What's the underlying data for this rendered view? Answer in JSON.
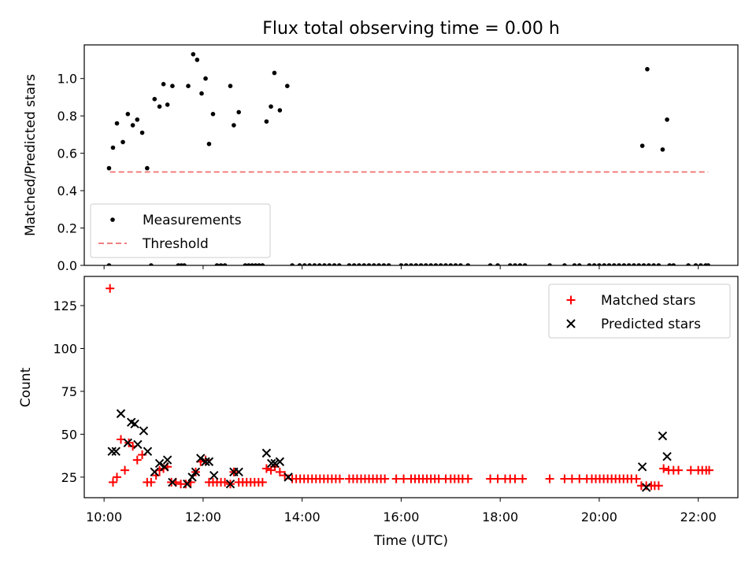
{
  "title": "Flux total observing time = 0.00 h",
  "xlabel": "Time (UTC)",
  "xticks": [
    {
      "t": 10,
      "label": "10:00"
    },
    {
      "t": 12,
      "label": "12:00"
    },
    {
      "t": 14,
      "label": "14:00"
    },
    {
      "t": 16,
      "label": "16:00"
    },
    {
      "t": 18,
      "label": "18:00"
    },
    {
      "t": 20,
      "label": "20:00"
    },
    {
      "t": 22,
      "label": "22:00"
    }
  ],
  "colors": {
    "measurements": "#000000",
    "threshold": "#f08080",
    "matched": "#ff0000",
    "predicted": "#000000"
  },
  "chart_data": [
    {
      "type": "scatter",
      "ylabel": "Matched/Predicted stars",
      "xlim": [
        9.6,
        22.8
      ],
      "ylim": [
        0,
        1.18
      ],
      "yticks": [
        0.0,
        0.2,
        0.4,
        0.6,
        0.8,
        1.0
      ],
      "ytick_labels": [
        "0.0",
        "0.2",
        "0.4",
        "0.6",
        "0.8",
        "1.0"
      ],
      "legend": "lower-left",
      "series": [
        {
          "name": "Measurements",
          "marker": "dot",
          "points": [
            [
              10.1,
              0.52
            ],
            [
              10.18,
              0.63
            ],
            [
              10.26,
              0.76
            ],
            [
              10.38,
              0.66
            ],
            [
              10.48,
              0.81
            ],
            [
              10.58,
              0.75
            ],
            [
              10.67,
              0.78
            ],
            [
              10.77,
              0.71
            ],
            [
              10.87,
              0.52
            ],
            [
              11.02,
              0.89
            ],
            [
              11.12,
              0.85
            ],
            [
              11.2,
              0.97
            ],
            [
              11.28,
              0.86
            ],
            [
              11.38,
              0.96
            ],
            [
              11.7,
              0.96
            ],
            [
              11.8,
              1.13
            ],
            [
              11.88,
              1.1
            ],
            [
              11.97,
              0.92
            ],
            [
              12.05,
              1.0
            ],
            [
              12.12,
              0.65
            ],
            [
              12.2,
              0.81
            ],
            [
              12.55,
              0.96
            ],
            [
              12.62,
              0.75
            ],
            [
              12.72,
              0.82
            ],
            [
              13.28,
              0.77
            ],
            [
              13.37,
              0.85
            ],
            [
              13.44,
              1.03
            ],
            [
              13.55,
              0.83
            ],
            [
              13.7,
              0.96
            ],
            [
              20.87,
              0.64
            ],
            [
              20.97,
              1.05
            ],
            [
              21.28,
              0.62
            ],
            [
              21.37,
              0.78
            ],
            [
              10.1,
              0
            ],
            [
              10.95,
              0
            ],
            [
              11.5,
              0
            ],
            [
              11.56,
              0
            ],
            [
              11.62,
              0
            ],
            [
              12.28,
              0
            ],
            [
              12.36,
              0
            ],
            [
              12.44,
              0
            ],
            [
              12.85,
              0
            ],
            [
              12.92,
              0
            ],
            [
              12.99,
              0
            ],
            [
              13.06,
              0
            ],
            [
              13.13,
              0
            ],
            [
              13.2,
              0
            ],
            [
              13.8,
              0
            ],
            [
              13.95,
              0
            ],
            [
              14.05,
              0
            ],
            [
              14.15,
              0
            ],
            [
              14.25,
              0
            ],
            [
              14.35,
              0
            ],
            [
              14.45,
              0
            ],
            [
              14.55,
              0
            ],
            [
              14.65,
              0
            ],
            [
              14.75,
              0
            ],
            [
              14.95,
              0
            ],
            [
              15.05,
              0
            ],
            [
              15.15,
              0
            ],
            [
              15.25,
              0
            ],
            [
              15.35,
              0
            ],
            [
              15.45,
              0
            ],
            [
              15.55,
              0
            ],
            [
              15.65,
              0
            ],
            [
              15.75,
              0
            ],
            [
              16.0,
              0
            ],
            [
              16.1,
              0
            ],
            [
              16.2,
              0
            ],
            [
              16.3,
              0
            ],
            [
              16.4,
              0
            ],
            [
              16.5,
              0
            ],
            [
              16.6,
              0
            ],
            [
              16.7,
              0
            ],
            [
              16.8,
              0
            ],
            [
              16.9,
              0
            ],
            [
              17.0,
              0
            ],
            [
              17.1,
              0
            ],
            [
              17.2,
              0
            ],
            [
              17.35,
              0
            ],
            [
              17.8,
              0
            ],
            [
              17.95,
              0
            ],
            [
              18.2,
              0
            ],
            [
              18.3,
              0
            ],
            [
              18.4,
              0
            ],
            [
              18.5,
              0
            ],
            [
              19.0,
              0
            ],
            [
              19.3,
              0
            ],
            [
              19.5,
              0
            ],
            [
              19.6,
              0
            ],
            [
              19.8,
              0
            ],
            [
              19.9,
              0
            ],
            [
              20.0,
              0
            ],
            [
              20.1,
              0
            ],
            [
              20.2,
              0
            ],
            [
              20.3,
              0
            ],
            [
              20.4,
              0
            ],
            [
              20.5,
              0
            ],
            [
              20.6,
              0
            ],
            [
              20.7,
              0
            ],
            [
              20.8,
              0
            ],
            [
              20.9,
              0
            ],
            [
              21.0,
              0
            ],
            [
              21.1,
              0
            ],
            [
              21.2,
              0
            ],
            [
              21.42,
              0
            ],
            [
              21.5,
              0
            ],
            [
              21.8,
              0
            ],
            [
              21.95,
              0
            ],
            [
              22.05,
              0
            ],
            [
              22.15,
              0
            ],
            [
              22.2,
              0
            ]
          ]
        },
        {
          "name": "Threshold",
          "line": "dashed",
          "x": [
            10.12,
            22.2
          ],
          "y": [
            0.5,
            0.5
          ]
        }
      ]
    },
    {
      "type": "scatter",
      "ylabel": "Count",
      "xlim": [
        9.6,
        22.8
      ],
      "ylim": [
        13,
        142
      ],
      "yticks": [
        25,
        50,
        75,
        100,
        125
      ],
      "ytick_labels": [
        "25",
        "50",
        "75",
        "100",
        "125"
      ],
      "legend": "upper-right",
      "series": [
        {
          "name": "Matched stars",
          "marker": "plus",
          "points": [
            [
              10.12,
              135
            ],
            [
              10.18,
              22
            ],
            [
              10.26,
              25
            ],
            [
              10.34,
              47
            ],
            [
              10.42,
              29
            ],
            [
              10.5,
              45
            ],
            [
              10.58,
              43
            ],
            [
              10.67,
              35
            ],
            [
              10.77,
              38
            ],
            [
              10.87,
              22
            ],
            [
              10.95,
              22
            ],
            [
              11.05,
              26
            ],
            [
              11.12,
              29
            ],
            [
              11.2,
              30
            ],
            [
              11.28,
              31
            ],
            [
              11.36,
              22
            ],
            [
              11.45,
              22
            ],
            [
              11.55,
              21
            ],
            [
              11.65,
              21
            ],
            [
              11.75,
              22
            ],
            [
              11.85,
              28
            ],
            [
              11.95,
              34
            ],
            [
              12.05,
              35
            ],
            [
              12.12,
              22
            ],
            [
              12.2,
              22
            ],
            [
              12.28,
              22
            ],
            [
              12.36,
              22
            ],
            [
              12.44,
              22
            ],
            [
              12.55,
              21
            ],
            [
              12.62,
              28
            ],
            [
              12.72,
              22
            ],
            [
              12.8,
              22
            ],
            [
              12.88,
              22
            ],
            [
              12.96,
              22
            ],
            [
              13.04,
              22
            ],
            [
              13.12,
              22
            ],
            [
              13.2,
              22
            ],
            [
              13.28,
              30
            ],
            [
              13.37,
              29
            ],
            [
              13.45,
              31
            ],
            [
              13.55,
              28
            ],
            [
              13.65,
              26
            ],
            [
              13.8,
              24
            ],
            [
              13.88,
              24
            ],
            [
              13.96,
              24
            ],
            [
              14.04,
              24
            ],
            [
              14.12,
              24
            ],
            [
              14.2,
              24
            ],
            [
              14.28,
              24
            ],
            [
              14.36,
              24
            ],
            [
              14.44,
              24
            ],
            [
              14.52,
              24
            ],
            [
              14.6,
              24
            ],
            [
              14.68,
              24
            ],
            [
              14.76,
              24
            ],
            [
              14.95,
              24
            ],
            [
              15.03,
              24
            ],
            [
              15.11,
              24
            ],
            [
              15.19,
              24
            ],
            [
              15.27,
              24
            ],
            [
              15.35,
              24
            ],
            [
              15.43,
              24
            ],
            [
              15.51,
              24
            ],
            [
              15.59,
              24
            ],
            [
              15.67,
              24
            ],
            [
              15.9,
              24
            ],
            [
              16.05,
              24
            ],
            [
              16.2,
              24
            ],
            [
              16.28,
              24
            ],
            [
              16.36,
              24
            ],
            [
              16.44,
              24
            ],
            [
              16.52,
              24
            ],
            [
              16.6,
              24
            ],
            [
              16.68,
              24
            ],
            [
              16.76,
              24
            ],
            [
              16.9,
              24
            ],
            [
              17.0,
              24
            ],
            [
              17.08,
              24
            ],
            [
              17.16,
              24
            ],
            [
              17.24,
              24
            ],
            [
              17.35,
              24
            ],
            [
              17.8,
              24
            ],
            [
              17.95,
              24
            ],
            [
              18.1,
              24
            ],
            [
              18.2,
              24
            ],
            [
              18.3,
              24
            ],
            [
              18.45,
              24
            ],
            [
              19.0,
              24
            ],
            [
              19.3,
              24
            ],
            [
              19.45,
              24
            ],
            [
              19.6,
              24
            ],
            [
              19.75,
              24
            ],
            [
              19.85,
              24
            ],
            [
              19.93,
              24
            ],
            [
              20.01,
              24
            ],
            [
              20.09,
              24
            ],
            [
              20.17,
              24
            ],
            [
              20.25,
              24
            ],
            [
              20.33,
              24
            ],
            [
              20.41,
              24
            ],
            [
              20.49,
              24
            ],
            [
              20.57,
              24
            ],
            [
              20.65,
              24
            ],
            [
              20.75,
              24
            ],
            [
              20.85,
              20
            ],
            [
              20.95,
              20
            ],
            [
              21.05,
              20
            ],
            [
              21.12,
              20
            ],
            [
              21.2,
              20
            ],
            [
              21.3,
              30
            ],
            [
              21.4,
              29
            ],
            [
              21.5,
              29
            ],
            [
              21.6,
              29
            ],
            [
              21.85,
              29
            ],
            [
              22.0,
              29
            ],
            [
              22.08,
              29
            ],
            [
              22.16,
              29
            ],
            [
              22.22,
              29
            ]
          ]
        },
        {
          "name": "Predicted stars",
          "marker": "x",
          "points": [
            [
              10.16,
              40
            ],
            [
              10.24,
              40
            ],
            [
              10.34,
              62
            ],
            [
              10.48,
              45
            ],
            [
              10.55,
              57
            ],
            [
              10.62,
              56
            ],
            [
              10.68,
              44
            ],
            [
              10.8,
              52
            ],
            [
              10.88,
              40
            ],
            [
              11.02,
              28
            ],
            [
              11.12,
              33
            ],
            [
              11.22,
              31
            ],
            [
              11.28,
              35
            ],
            [
              11.38,
              22
            ],
            [
              11.68,
              21
            ],
            [
              11.78,
              25
            ],
            [
              11.85,
              28
            ],
            [
              11.95,
              36
            ],
            [
              12.05,
              34
            ],
            [
              12.12,
              34
            ],
            [
              12.22,
              26
            ],
            [
              12.55,
              21
            ],
            [
              12.62,
              28
            ],
            [
              12.72,
              28
            ],
            [
              13.28,
              39
            ],
            [
              13.38,
              33
            ],
            [
              13.45,
              33
            ],
            [
              13.55,
              34
            ],
            [
              13.72,
              25
            ],
            [
              20.87,
              31
            ],
            [
              20.95,
              19
            ],
            [
              21.28,
              49
            ],
            [
              21.37,
              37
            ]
          ]
        }
      ]
    }
  ]
}
